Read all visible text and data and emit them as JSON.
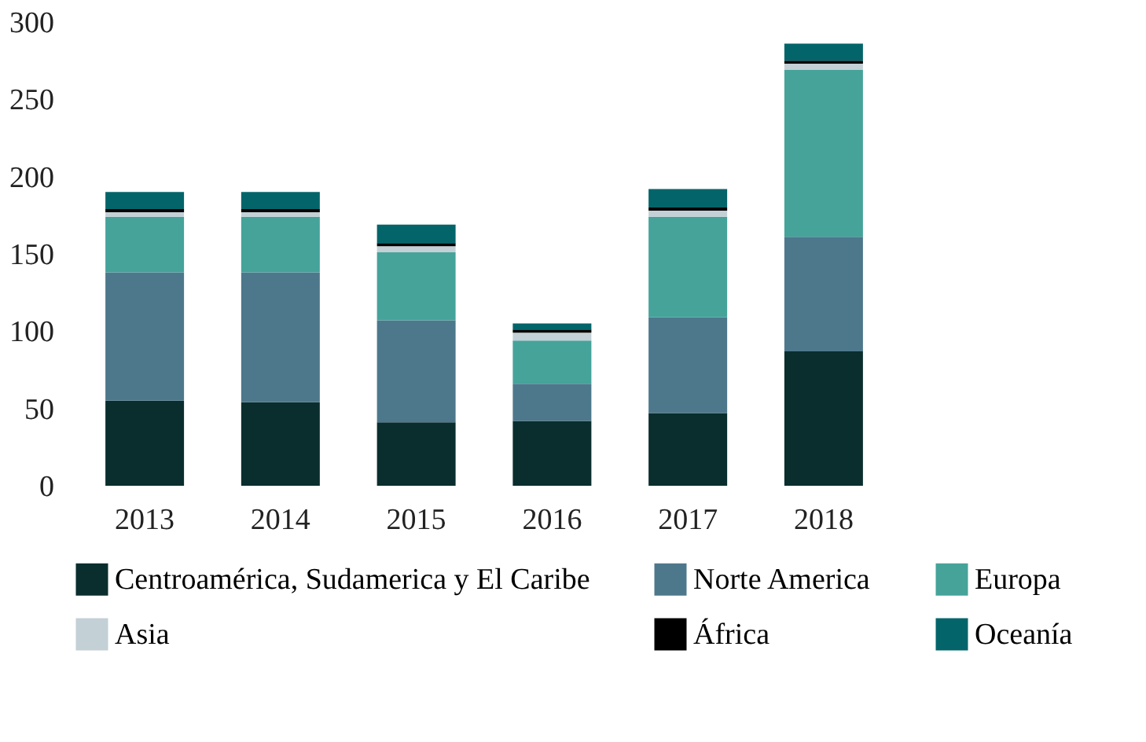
{
  "chart_data": {
    "type": "bar",
    "stacked": true,
    "categories": [
      "2013",
      "2014",
      "2015",
      "2016",
      "2017",
      "2018"
    ],
    "series": [
      {
        "name": "Centroamérica, Sudamerica y El Caribe",
        "color": "#0a2e2e",
        "values": [
          55,
          54,
          41,
          42,
          47,
          87
        ]
      },
      {
        "name": "Norte America",
        "color": "#4d788c",
        "values": [
          83,
          84,
          66,
          24,
          62,
          74
        ]
      },
      {
        "name": "Europa",
        "color": "#45a39a",
        "values": [
          36,
          36,
          44,
          28,
          65,
          108
        ]
      },
      {
        "name": "Asia",
        "color": "#c3d0d5",
        "values": [
          3,
          3,
          4,
          5,
          4,
          4
        ]
      },
      {
        "name": "África",
        "color": "#000000",
        "values": [
          2,
          2,
          2,
          2,
          2,
          2
        ]
      },
      {
        "name": "Oceanía",
        "color": "#03656a",
        "values": [
          11,
          11,
          12,
          4,
          12,
          11
        ]
      }
    ],
    "ylim": [
      0,
      300
    ],
    "yticks": [
      0,
      50,
      100,
      150,
      200,
      250,
      300
    ],
    "grid": false,
    "legend": "bottom"
  }
}
